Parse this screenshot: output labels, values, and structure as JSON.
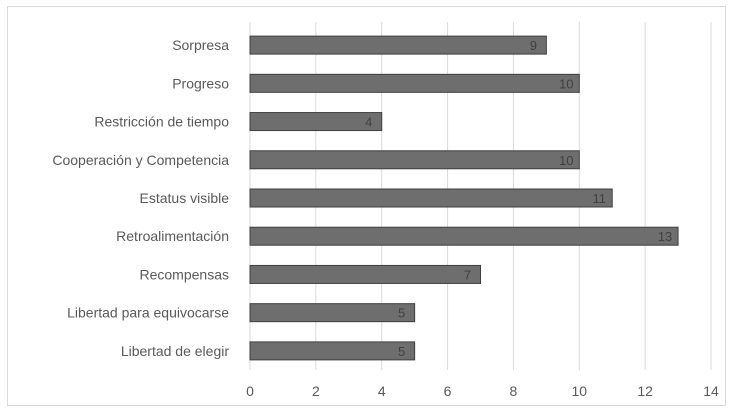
{
  "chart_data": {
    "type": "bar",
    "orientation": "horizontal",
    "categories": [
      "Sorpresa",
      "Progreso",
      "Restricción de tiempo",
      "Cooperación y Competencia",
      "Estatus visible",
      "Retroalimentación",
      "Recompensas",
      "Libertad para equivocarse",
      "Libertad de elegir"
    ],
    "values": [
      9,
      10,
      4,
      10,
      11,
      13,
      7,
      5,
      5
    ],
    "xlim": [
      0,
      14
    ],
    "x_ticks": [
      "0",
      "2",
      "4",
      "6",
      "8",
      "10",
      "12",
      "14"
    ],
    "grid": "vertical",
    "data_labels": true,
    "bar_color": "#6e6e6e",
    "bar_edge_color": "#3f3f3f",
    "grid_color": "#d9d9d9"
  }
}
